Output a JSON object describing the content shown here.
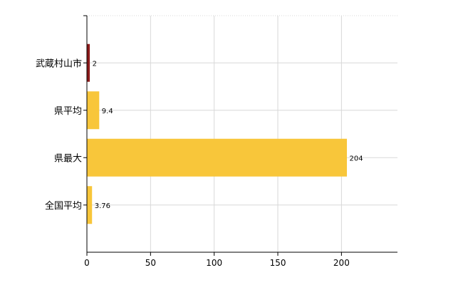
{
  "chart_data": {
    "type": "bar",
    "orientation": "horizontal",
    "categories": [
      "武蔵村山市",
      "県平均",
      "県最大",
      "全国平均"
    ],
    "values": [
      2,
      9.4,
      204,
      3.76
    ],
    "value_labels": [
      "2",
      "9.4",
      "204",
      "3.76"
    ],
    "bar_colors": [
      "#8B1A1A",
      "#F8C63A",
      "#F8C63A",
      "#F8C63A"
    ],
    "xlim": [
      0,
      244
    ],
    "x_ticks": [
      0,
      50,
      100,
      150,
      200
    ],
    "x_tick_labels": [
      "0",
      "50",
      "100",
      "150",
      "200"
    ],
    "grid": true,
    "legend": "none"
  }
}
